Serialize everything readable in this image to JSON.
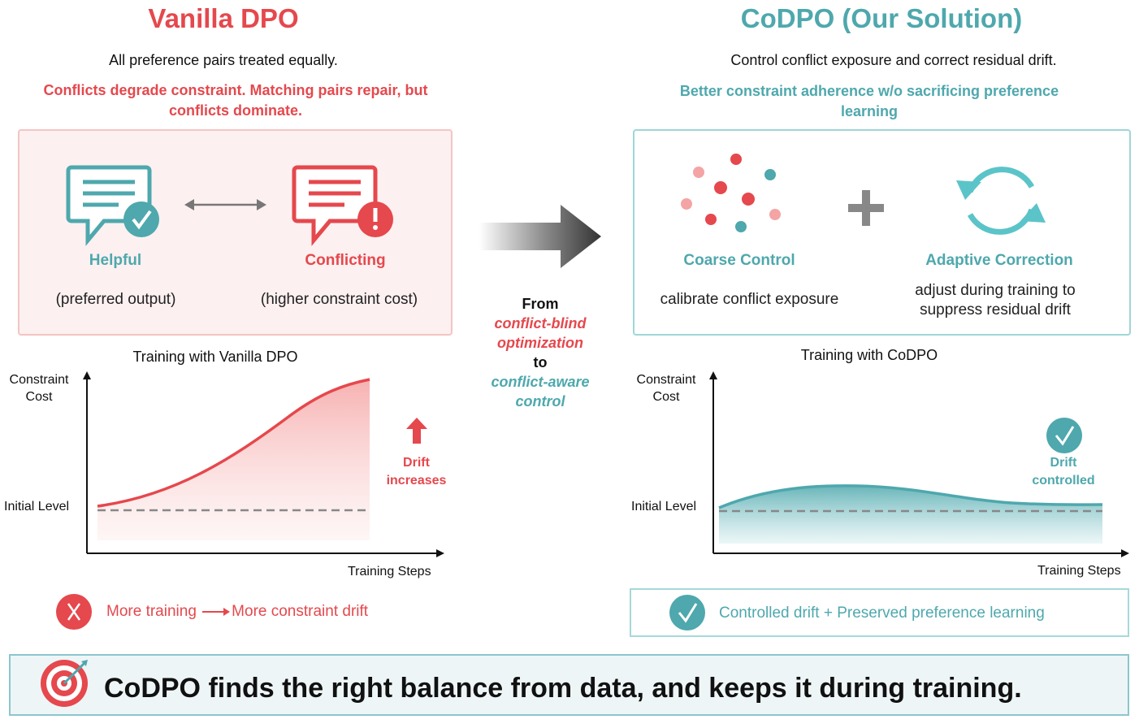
{
  "left": {
    "title": "Vanilla DPO",
    "subtitle": "All preference pairs treated equally.",
    "warning_line1": "Conflicts degrade constraint. Matching pairs repair, but",
    "warning_line2": "conflicts dominate.",
    "helpful_label": "Helpful",
    "helpful_desc": "(preferred output)",
    "conflict_label": "Conflicting",
    "conflict_desc": "(higher constraint cost)",
    "chart_title": "Training with Vanilla DPO",
    "y_label_1": "Constraint",
    "y_label_2": "Cost",
    "initial_level": "Initial Level",
    "x_label": "Training Steps",
    "drift_1": "Drift",
    "drift_2": "increases",
    "summary_a": "More training",
    "summary_b": "More constraint drift"
  },
  "middle": {
    "line1": "From",
    "line2": "conflict-blind",
    "line3": "optimization",
    "line4": "to",
    "line5": "conflict-aware",
    "line6": "control"
  },
  "right": {
    "title": "CoDPO (Our Solution)",
    "subtitle": "Control conflict exposure and correct residual drift.",
    "good_line1": "Better constraint adherence w/o sacrificing preference",
    "good_line2": "learning",
    "coarse_label": "Coarse Control",
    "coarse_desc": "calibrate conflict exposure",
    "adaptive_label": "Adaptive Correction",
    "adaptive_desc_1": "adjust during training to",
    "adaptive_desc_2": "suppress residual drift",
    "chart_title": "Training with CoDPO",
    "y_label_1": "Constraint",
    "y_label_2": "Cost",
    "initial_level": "Initial Level",
    "x_label": "Training Steps",
    "drift_1": "Drift",
    "drift_2": "controlled",
    "summary": "Controlled drift + Preserved preference learning"
  },
  "banner": "CoDPO finds the right balance from data, and keeps it during training.",
  "colors": {
    "red": "#e5484d",
    "teal": "#4ea8ad"
  },
  "icons": [
    "chat-check-icon",
    "double-arrow-icon",
    "chat-alert-icon",
    "arrow-right-icon",
    "dots-cluster-icon",
    "plus-icon",
    "cycle-arrows-icon",
    "arrow-up-icon",
    "check-circle-icon",
    "x-circle-icon",
    "target-icon"
  ]
}
